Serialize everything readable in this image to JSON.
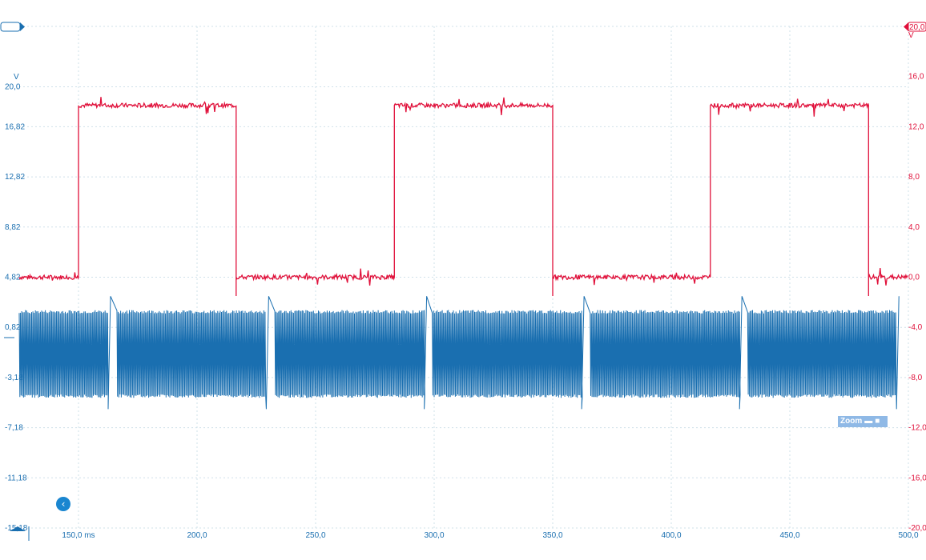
{
  "chart_data": {
    "type": "line",
    "x_unit": "ms",
    "xlim": [
      125,
      500
    ],
    "x_ticks": [
      150,
      200,
      250,
      300,
      350,
      400,
      450,
      500
    ],
    "x_tick_labels": [
      "150,0 ms",
      "200,0",
      "250,0",
      "300,0",
      "350,0",
      "400,0",
      "450,0",
      "500,0"
    ],
    "left_axis": {
      "unit": "V",
      "ylim": [
        -15.18,
        24.82
      ],
      "ticks": [
        20.0,
        16.82,
        12.82,
        8.82,
        4.82,
        0.82,
        -3.18,
        -7.18,
        -11.18,
        -15.18
      ],
      "tick_labels": [
        "20,0",
        "16,82",
        "12,82",
        "8,82",
        "4,82",
        "0,82",
        "-3,18",
        "-7,18",
        "-11,18",
        "-15,18"
      ],
      "color": "#1a6fb0"
    },
    "right_axis": {
      "unit": "V",
      "ylim": [
        -20,
        20
      ],
      "ticks": [
        16,
        12,
        8,
        4,
        0,
        -4,
        -8,
        -12,
        -16,
        -20
      ],
      "tick_labels": [
        "16,0",
        "12,0",
        "8,0",
        "4,0",
        "0,0",
        "-4,0",
        "-8,0",
        "-12,0",
        "-16,0",
        "-20,0"
      ],
      "top_label": "20,0",
      "color": "#e0103a"
    },
    "grid": true,
    "series": [
      {
        "axis": "right",
        "color": "#e0103a",
        "kind": "square wave",
        "low": 0.0,
        "high": 13.7,
        "edges_ms": [
          150,
          216.5,
          283.2,
          350,
          416.5,
          483.2
        ],
        "start_level": "low"
      },
      {
        "axis": "left",
        "color": "#1a6fb0",
        "kind": "burst oscillation",
        "center": -1.3,
        "amplitude": 3.4,
        "bursts_ms": [
          [
            125,
            162.5
          ],
          [
            166.2,
            229.2
          ],
          [
            232.8,
            295.8
          ],
          [
            299.2,
            362.2
          ],
          [
            365.8,
            428.8
          ],
          [
            432.2,
            495
          ]
        ]
      }
    ]
  },
  "controls": {
    "zoom_label": "Zoom",
    "back_icon": "chevron-left-icon"
  }
}
